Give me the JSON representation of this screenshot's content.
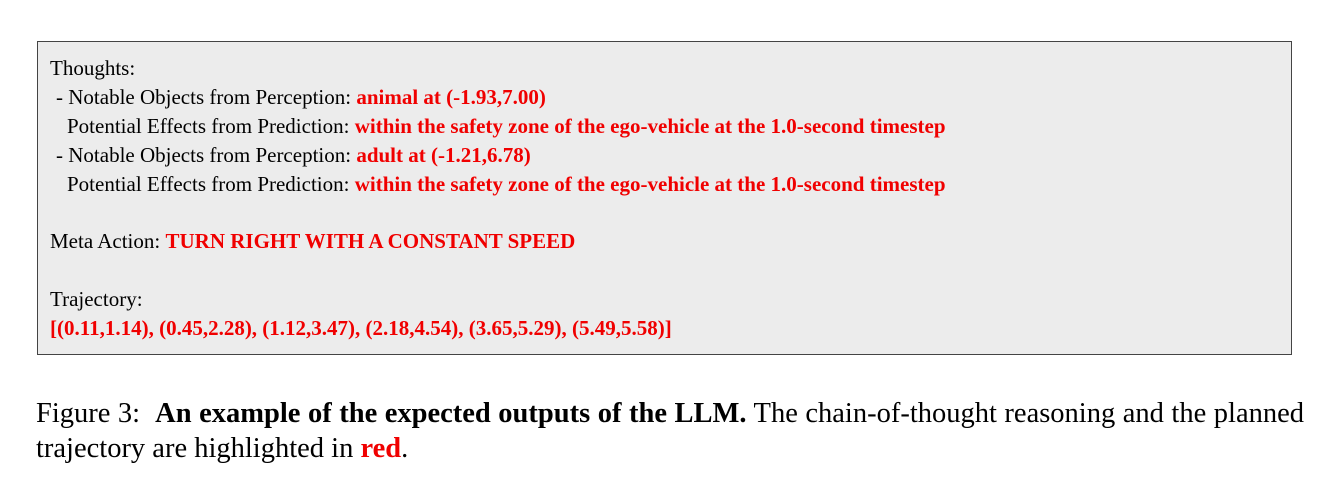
{
  "box": {
    "thoughts_label": "Thoughts:",
    "items": [
      {
        "object_prefix": "- Notable Objects from Perception: ",
        "object_value": "animal at (-1.93,7.00)",
        "effect_prefix": "Potential Effects from Prediction: ",
        "effect_value": "within the safety zone of the ego-vehicle at the 1.0-second timestep"
      },
      {
        "object_prefix": "- Notable Objects from Perception: ",
        "object_value": "adult at (-1.21,6.78)",
        "effect_prefix": "Potential Effects from Prediction: ",
        "effect_value": "within the safety zone of the ego-vehicle at the 1.0-second timestep"
      }
    ],
    "meta_action_label": "Meta Action: ",
    "meta_action_value": "TURN RIGHT WITH A CONSTANT SPEED",
    "trajectory_label": "Trajectory:",
    "trajectory_value": "[(0.11,1.14), (0.45,2.28), (1.12,3.47), (2.18,4.54), (3.65,5.29), (5.49,5.58)]"
  },
  "caption": {
    "figure_label": "Figure 3:",
    "bold_title": "An example of the expected outputs of the LLM.",
    "text_part1": "The chain-of-thought reasoning and the planned trajectory are highlighted in",
    "highlight_word": "red",
    "text_end": "."
  },
  "colors": {
    "highlight": "#f00000",
    "box_background": "#ececec",
    "box_border": "#444444"
  }
}
